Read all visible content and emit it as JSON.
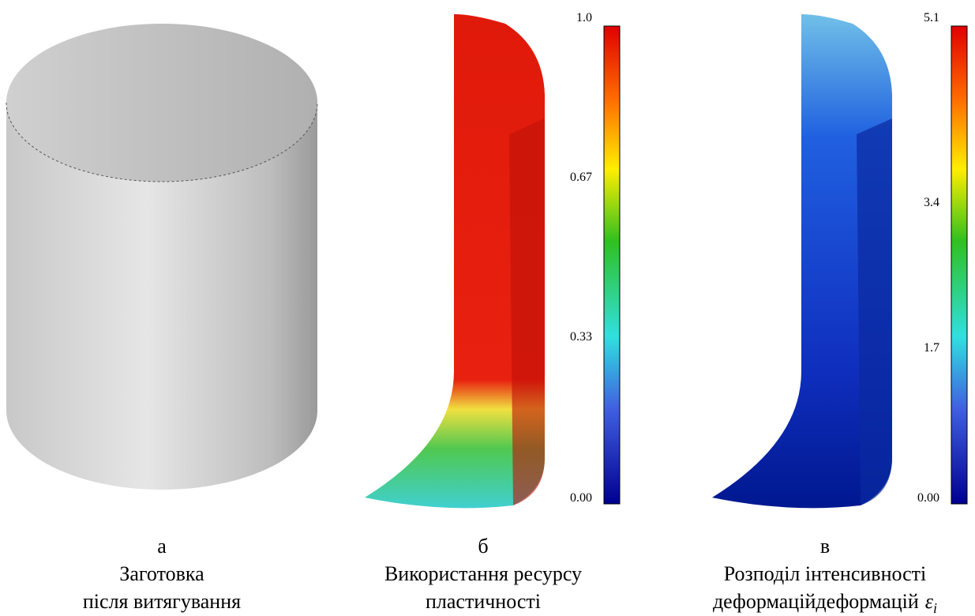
{
  "panels": [
    {
      "letter": "а",
      "caption": [
        "Заготовка",
        "після витягування"
      ]
    },
    {
      "letter": "б",
      "caption": [
        "Використання ресурсу",
        "пластичності"
      ],
      "colorbar": [
        "1.0",
        "0.67",
        "0.33",
        "0.00"
      ]
    },
    {
      "letter": "в",
      "caption": [
        "Розподіл інтенсивності",
        "деформацій"
      ],
      "symbol": "ε",
      "symbol_sub": "i",
      "colorbar": [
        "5.1",
        "3.4",
        "1.7",
        "0.00"
      ]
    }
  ]
}
